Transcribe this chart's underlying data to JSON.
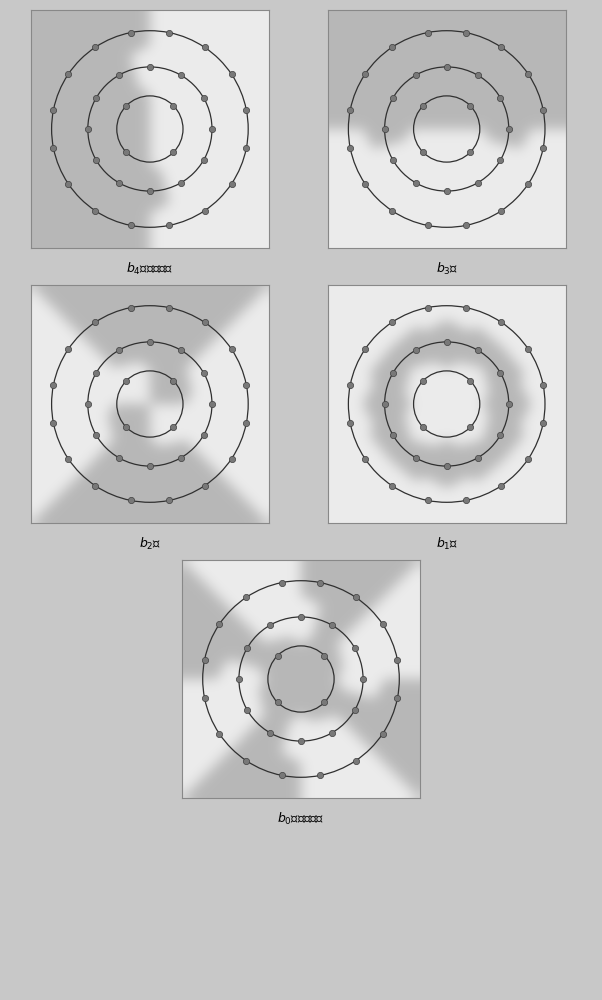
{
  "titles": [
    "$b_4$位，最高位",
    "$b_3$位",
    "$b_2$位",
    "$b_1$位",
    "$b_0$位，最低位"
  ],
  "ring_radii": [
    0.32,
    0.6,
    0.95
  ],
  "ring_counts": [
    4,
    12,
    16
  ],
  "ring_offsets_deg": [
    45.0,
    0.0,
    11.25
  ],
  "lim": 1.15,
  "dot_color": "#787878",
  "dot_edge": "#404040",
  "circle_color": "#303030",
  "color_light": [
    0.925,
    0.925,
    0.925
  ],
  "color_dark": [
    0.72,
    0.72,
    0.72
  ],
  "fig_bg": "#c8c8c8",
  "panel_bg": "#d8d8d8",
  "resolution": 300,
  "bit_labels": [
    {
      "text": "$b_4$位，最高位",
      "fontsize": 9
    },
    {
      "text": "$b_3$位",
      "fontsize": 9
    },
    {
      "text": "$b_2$位",
      "fontsize": 9
    },
    {
      "text": "$b_1$位",
      "fontsize": 9
    },
    {
      "text": "$b_0$位，最低位",
      "fontsize": 9
    }
  ]
}
